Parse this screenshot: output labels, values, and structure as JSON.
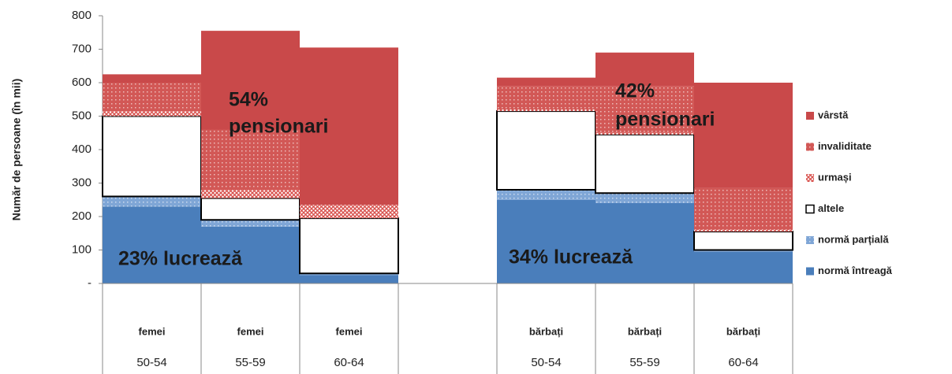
{
  "chart_data": {
    "type": "stacked_bar",
    "ylabel": "Număr de persoane (în mii)",
    "category_groups": [
      "femei",
      "femei",
      "femei",
      null,
      "bărbați",
      "bărbați",
      "bărbați"
    ],
    "categories": [
      "50-54",
      "55-59",
      "60-64",
      null,
      "50-54",
      "55-59",
      "60-64"
    ],
    "ylim": [
      0,
      800
    ],
    "yticks": [
      {
        "value": 0,
        "label": "-"
      },
      100,
      200,
      300,
      400,
      500,
      600,
      700,
      800
    ],
    "series": [
      {
        "name": "normă întreagă",
        "color": "#4a7ebb",
        "values": [
          230,
          170,
          25,
          null,
          250,
          240,
          95
        ]
      },
      {
        "name": "normă parțială",
        "color": "#7fa6d6",
        "hatch": "dots",
        "values": [
          30,
          20,
          5,
          null,
          30,
          30,
          5
        ]
      },
      {
        "name": "altele",
        "color": "#ffffff",
        "edgecolor": "#000000",
        "values": [
          240,
          65,
          165,
          null,
          235,
          175,
          55
        ]
      },
      {
        "name": "urmași",
        "color": "#d9534f",
        "hatch": "cross",
        "values": [
          15,
          25,
          40,
          null,
          5,
          5,
          5
        ]
      },
      {
        "name": "invaliditate",
        "color": "#d25856",
        "hatch": "dots",
        "values": [
          85,
          180,
          0,
          null,
          70,
          140,
          125
        ]
      },
      {
        "name": "vârstă",
        "color": "#c9494a",
        "values": [
          25,
          295,
          470,
          null,
          25,
          100,
          315
        ]
      }
    ],
    "annotations": [
      "23% lucrează",
      "54%",
      "pensionari",
      "34% lucrează",
      "42%",
      "pensionari"
    ]
  }
}
